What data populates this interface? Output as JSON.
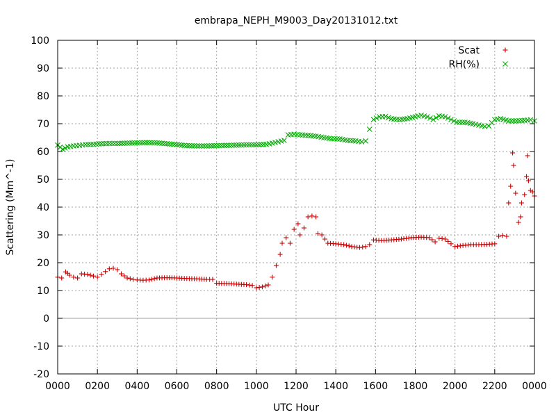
{
  "chart_data": {
    "type": "scatter",
    "title": "embrapa_NEPH_M9003_Day20131012.txt",
    "xlabel": "UTC Hour",
    "ylabel": "Scattering (Mm^-1)",
    "xlim": [
      0,
      24
    ],
    "ylim": [
      -20,
      100
    ],
    "x_ticks": [
      {
        "value": 0,
        "label": "0000"
      },
      {
        "value": 2,
        "label": "0200"
      },
      {
        "value": 4,
        "label": "0400"
      },
      {
        "value": 6,
        "label": "0600"
      },
      {
        "value": 8,
        "label": "0800"
      },
      {
        "value": 10,
        "label": "1000"
      },
      {
        "value": 12,
        "label": "1200"
      },
      {
        "value": 14,
        "label": "1400"
      },
      {
        "value": 16,
        "label": "1600"
      },
      {
        "value": 18,
        "label": "1800"
      },
      {
        "value": 20,
        "label": "2000"
      },
      {
        "value": 22,
        "label": "2200"
      },
      {
        "value": 24,
        "label": "0000"
      }
    ],
    "y_ticks": [
      -20,
      -10,
      0,
      10,
      20,
      30,
      40,
      50,
      60,
      70,
      80,
      90,
      100
    ],
    "grid": true,
    "zero_line": true,
    "legend_position": "top-right",
    "series": [
      {
        "name": "Scat",
        "marker": "plus",
        "color": "#cc0000",
        "points": [
          [
            0.0,
            14.8
          ],
          [
            0.2,
            14.5
          ],
          [
            0.4,
            16.7
          ],
          [
            0.5,
            16.2
          ],
          [
            0.6,
            15.5
          ],
          [
            0.8,
            14.8
          ],
          [
            1.0,
            14.5
          ],
          [
            1.2,
            16.0
          ],
          [
            1.5,
            15.8
          ],
          [
            1.8,
            15.2
          ],
          [
            2.0,
            14.8
          ],
          [
            2.2,
            15.8
          ],
          [
            2.4,
            16.8
          ],
          [
            2.6,
            17.8
          ],
          [
            2.8,
            18.0
          ],
          [
            3.0,
            17.5
          ],
          [
            3.2,
            16.0
          ],
          [
            3.5,
            14.5
          ],
          [
            3.8,
            14.0
          ],
          [
            4.0,
            13.8
          ],
          [
            4.3,
            13.7
          ],
          [
            4.6,
            13.8
          ],
          [
            5.0,
            14.5
          ],
          [
            5.5,
            14.6
          ],
          [
            6.0,
            14.5
          ],
          [
            6.5,
            14.3
          ],
          [
            7.0,
            14.2
          ],
          [
            7.5,
            14.0
          ],
          [
            7.8,
            14.0
          ],
          [
            8.0,
            12.6
          ],
          [
            8.5,
            12.5
          ],
          [
            9.0,
            12.3
          ],
          [
            9.5,
            12.1
          ],
          [
            9.8,
            11.8
          ],
          [
            10.0,
            11.0
          ],
          [
            10.3,
            11.3
          ],
          [
            10.6,
            12.0
          ],
          [
            10.8,
            14.8
          ],
          [
            11.0,
            19.0
          ],
          [
            11.2,
            23.0
          ],
          [
            11.3,
            27.0
          ],
          [
            11.5,
            29.0
          ],
          [
            11.7,
            27.0
          ],
          [
            11.9,
            32.0
          ],
          [
            12.1,
            34.0
          ],
          [
            12.2,
            30.0
          ],
          [
            12.4,
            32.5
          ],
          [
            12.6,
            36.5
          ],
          [
            12.8,
            36.8
          ],
          [
            13.0,
            36.5
          ],
          [
            13.1,
            30.5
          ],
          [
            13.3,
            30.0
          ],
          [
            13.6,
            27.0
          ],
          [
            14.0,
            26.8
          ],
          [
            14.4,
            26.5
          ],
          [
            14.8,
            25.8
          ],
          [
            15.2,
            25.5
          ],
          [
            15.5,
            25.8
          ],
          [
            15.7,
            26.5
          ],
          [
            15.9,
            28.2
          ],
          [
            16.3,
            28.0
          ],
          [
            16.8,
            28.2
          ],
          [
            17.3,
            28.5
          ],
          [
            17.8,
            29.0
          ],
          [
            18.3,
            29.2
          ],
          [
            18.7,
            29.0
          ],
          [
            19.0,
            27.5
          ],
          [
            19.2,
            28.8
          ],
          [
            19.5,
            28.5
          ],
          [
            19.8,
            26.8
          ],
          [
            20.0,
            25.8
          ],
          [
            20.4,
            26.2
          ],
          [
            20.8,
            26.5
          ],
          [
            21.2,
            26.5
          ],
          [
            21.6,
            26.6
          ],
          [
            22.0,
            26.8
          ],
          [
            22.2,
            29.5
          ],
          [
            22.4,
            29.8
          ],
          [
            22.6,
            29.5
          ],
          [
            22.7,
            41.5
          ],
          [
            22.8,
            47.5
          ],
          [
            22.9,
            59.5
          ],
          [
            22.95,
            55.0
          ],
          [
            23.05,
            45.0
          ],
          [
            23.2,
            34.5
          ],
          [
            23.3,
            36.5
          ],
          [
            23.35,
            41.5
          ],
          [
            23.5,
            44.5
          ],
          [
            23.6,
            51.0
          ],
          [
            23.65,
            58.5
          ],
          [
            23.7,
            49.5
          ],
          [
            23.8,
            46.0
          ],
          [
            23.9,
            45.5
          ],
          [
            24.0,
            44.0
          ]
        ]
      },
      {
        "name": "RH(%)",
        "marker": "cross",
        "color": "#00aa00",
        "points": [
          [
            0.0,
            62.3
          ],
          [
            0.25,
            60.8
          ],
          [
            0.5,
            61.7
          ],
          [
            0.8,
            62.0
          ],
          [
            1.1,
            62.2
          ],
          [
            1.4,
            62.5
          ],
          [
            1.8,
            62.6
          ],
          [
            2.2,
            62.8
          ],
          [
            2.6,
            62.9
          ],
          [
            3.0,
            62.9
          ],
          [
            3.5,
            63.0
          ],
          [
            4.0,
            63.1
          ],
          [
            4.5,
            63.2
          ],
          [
            5.0,
            63.1
          ],
          [
            5.5,
            62.8
          ],
          [
            6.0,
            62.5
          ],
          [
            6.5,
            62.1
          ],
          [
            7.0,
            62.0
          ],
          [
            7.5,
            62.0
          ],
          [
            8.0,
            62.1
          ],
          [
            8.5,
            62.2
          ],
          [
            9.0,
            62.3
          ],
          [
            9.5,
            62.4
          ],
          [
            10.0,
            62.4
          ],
          [
            10.5,
            62.6
          ],
          [
            10.8,
            63.0
          ],
          [
            11.1,
            63.5
          ],
          [
            11.4,
            64.0
          ],
          [
            11.6,
            66.0
          ],
          [
            11.9,
            66.2
          ],
          [
            12.2,
            66.0
          ],
          [
            12.6,
            65.8
          ],
          [
            13.0,
            65.5
          ],
          [
            13.4,
            65.0
          ],
          [
            13.8,
            64.6
          ],
          [
            14.2,
            64.5
          ],
          [
            14.6,
            64.0
          ],
          [
            15.0,
            63.8
          ],
          [
            15.3,
            63.5
          ],
          [
            15.5,
            63.8
          ],
          [
            15.7,
            68.0
          ],
          [
            15.9,
            71.5
          ],
          [
            16.2,
            72.5
          ],
          [
            16.5,
            72.6
          ],
          [
            16.8,
            71.8
          ],
          [
            17.2,
            71.5
          ],
          [
            17.6,
            71.8
          ],
          [
            18.0,
            72.5
          ],
          [
            18.3,
            73.0
          ],
          [
            18.6,
            72.5
          ],
          [
            18.9,
            71.5
          ],
          [
            19.2,
            72.8
          ],
          [
            19.5,
            72.5
          ],
          [
            19.8,
            71.5
          ],
          [
            20.1,
            70.5
          ],
          [
            20.5,
            70.5
          ],
          [
            20.9,
            70.0
          ],
          [
            21.2,
            69.5
          ],
          [
            21.5,
            69.0
          ],
          [
            21.7,
            69.2
          ],
          [
            22.0,
            71.5
          ],
          [
            22.3,
            71.8
          ],
          [
            22.7,
            71.0
          ],
          [
            23.1,
            71.0
          ],
          [
            23.5,
            71.2
          ],
          [
            23.8,
            71.4
          ],
          [
            24.0,
            71.0
          ]
        ]
      }
    ]
  }
}
